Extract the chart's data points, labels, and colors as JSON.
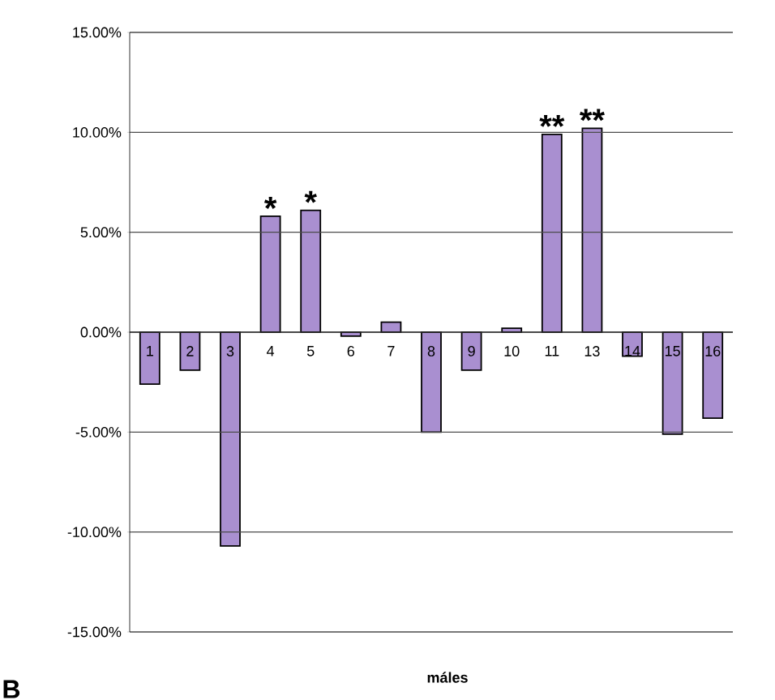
{
  "chart_data": {
    "type": "bar",
    "xlabel": "máles",
    "categories": [
      "1",
      "2",
      "3",
      "4",
      "5",
      "6",
      "7",
      "8",
      "9",
      "10",
      "11",
      "13",
      "14",
      "15",
      "16"
    ],
    "values": [
      -2.6,
      -1.9,
      -10.7,
      5.8,
      6.1,
      -0.2,
      0.5,
      -5.0,
      -1.9,
      0.2,
      9.9,
      10.2,
      -1.2,
      -5.1,
      -4.3
    ],
    "color": "#a98fd0",
    "ylim": [
      -15,
      15
    ],
    "yticks": [
      {
        "value": -15,
        "label": "-15.00%"
      },
      {
        "value": -10,
        "label": "-10.00%"
      },
      {
        "value": -5,
        "label": "-5.00%"
      },
      {
        "value": 0,
        "label": "0.00%"
      },
      {
        "value": 5,
        "label": "5.00%"
      },
      {
        "value": 10,
        "label": "10.00%"
      },
      {
        "value": 15,
        "label": "15.00%"
      }
    ],
    "grid": "y",
    "annotations": [
      {
        "text": "*",
        "x": "4",
        "y": 5.8
      },
      {
        "text": "*",
        "x": "5",
        "y": 6.1
      },
      {
        "text": "**",
        "x": "11",
        "y": 9.9
      },
      {
        "text": "**",
        "x": "13",
        "y": 10.2
      },
      "B"
    ]
  }
}
